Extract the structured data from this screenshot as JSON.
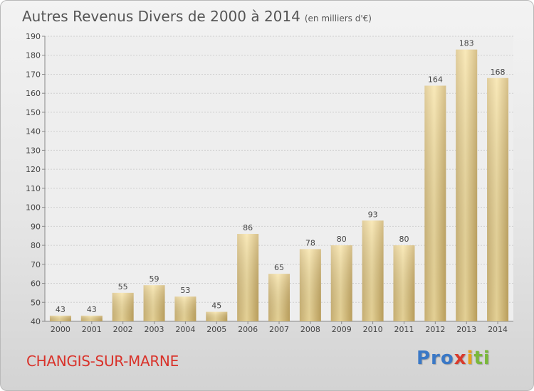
{
  "title": "Autres Revenus Divers de 2000 à 2014",
  "subtitle": "(en milliers d'€)",
  "place": "CHANGIS-SUR-MARNE",
  "logo": "Proxiti",
  "colors": {
    "bar_light": "#f6df9c",
    "bar_dark": "#cdb06a",
    "place": "#d9322a",
    "grid": "#cfcfcf"
  },
  "chart_data": {
    "type": "bar",
    "categories": [
      "2000",
      "2001",
      "2002",
      "2003",
      "2004",
      "2005",
      "2006",
      "2007",
      "2008",
      "2009",
      "2010",
      "2011",
      "2012",
      "2013",
      "2014"
    ],
    "values": [
      43,
      43,
      55,
      59,
      53,
      45,
      86,
      65,
      78,
      80,
      93,
      80,
      164,
      183,
      168
    ],
    "ylim": [
      40,
      190
    ],
    "yticks": [
      40,
      50,
      60,
      70,
      80,
      90,
      100,
      110,
      120,
      130,
      140,
      150,
      160,
      170,
      180,
      190
    ],
    "grid": true,
    "xlabel": "",
    "ylabel": ""
  }
}
